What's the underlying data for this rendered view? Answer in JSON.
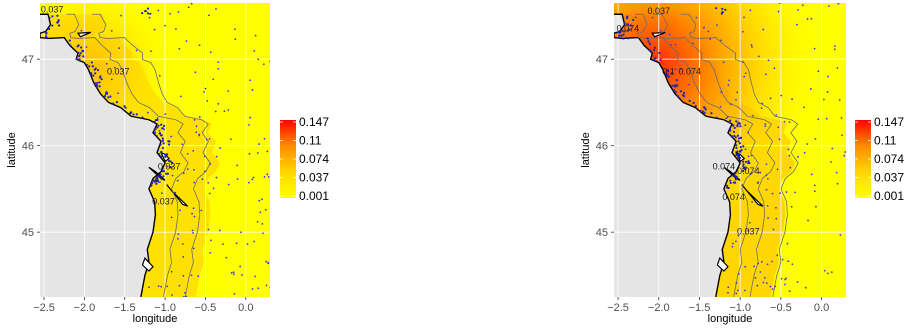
{
  "chart_data": [
    {
      "type": "heatmap",
      "title": "",
      "xlabel": "longitude",
      "ylabel": "latitude",
      "xlim": [
        -2.55,
        0.3
      ],
      "ylim": [
        44.25,
        47.65
      ],
      "x_ticks": [
        {
          "value": -2.5,
          "label": "-2.5"
        },
        {
          "value": -2.0,
          "label": "-2.0"
        },
        {
          "value": -1.5,
          "label": "-1.5"
        },
        {
          "value": -1.0,
          "label": "-1.0"
        },
        {
          "value": -0.5,
          "label": "-0.5"
        },
        {
          "value": 0.0,
          "label": "0.0"
        }
      ],
      "y_ticks": [
        {
          "value": 45,
          "label": "45"
        },
        {
          "value": 46,
          "label": "46"
        },
        {
          "value": 47,
          "label": "47"
        }
      ],
      "grid": true,
      "legend": {
        "placement": "right",
        "breaks": [
          "0.147",
          "0.11",
          "0.074",
          "0.037",
          "0.001"
        ],
        "colors": [
          "#FF0000",
          "#FF8C00",
          "#FFD700",
          "#FFFF00"
        ]
      },
      "contour_labels": [
        {
          "text": "0.037",
          "lon": -2.4,
          "lat": 47.57
        },
        {
          "text": "0.037",
          "lon": -1.58,
          "lat": 46.85
        },
        {
          "text": "0.037",
          "lon": -0.95,
          "lat": 45.75
        },
        {
          "text": "0.037",
          "lon": -1.02,
          "lat": 45.35
        }
      ],
      "hotspot": {
        "lon": -1.95,
        "lat": 46.9,
        "peak": 0.06
      }
    },
    {
      "type": "heatmap",
      "title": "",
      "xlabel": "longitude",
      "ylabel": "latitude",
      "xlim": [
        -2.55,
        0.3
      ],
      "ylim": [
        44.25,
        47.65
      ],
      "x_ticks": [
        {
          "value": -2.5,
          "label": "-2.5"
        },
        {
          "value": -2.0,
          "label": "-2.0"
        },
        {
          "value": -1.5,
          "label": "-1.5"
        },
        {
          "value": -1.0,
          "label": "-1.0"
        },
        {
          "value": -0.5,
          "label": "-0.5"
        },
        {
          "value": 0.0,
          "label": "0.0"
        }
      ],
      "y_ticks": [
        {
          "value": 45,
          "label": "45"
        },
        {
          "value": 46,
          "label": "46"
        },
        {
          "value": 47,
          "label": "47"
        }
      ],
      "grid": true,
      "legend": {
        "placement": "right",
        "breaks": [
          "0.147",
          "0.11",
          "0.074",
          "0.037",
          "0.001"
        ],
        "colors": [
          "#FF0000",
          "#FF8C00",
          "#FFD700",
          "#FFFF00"
        ]
      },
      "contour_labels": [
        {
          "text": "0.037",
          "lon": -2.0,
          "lat": 47.55
        },
        {
          "text": "0.074",
          "lon": -2.38,
          "lat": 47.35
        },
        {
          "text": "0.1",
          "lon": -1.88,
          "lat": 46.85
        },
        {
          "text": "0.074",
          "lon": -1.62,
          "lat": 46.85
        },
        {
          "text": "0.074",
          "lon": -1.2,
          "lat": 45.75
        },
        {
          "text": "0.074",
          "lon": -0.9,
          "lat": 45.7
        },
        {
          "text": "0.074",
          "lon": -1.08,
          "lat": 45.4
        },
        {
          "text": "0.037",
          "lon": -0.9,
          "lat": 45.0
        }
      ],
      "hotspot": {
        "lon": -2.05,
        "lat": 46.95,
        "peak": 0.147
      }
    }
  ]
}
